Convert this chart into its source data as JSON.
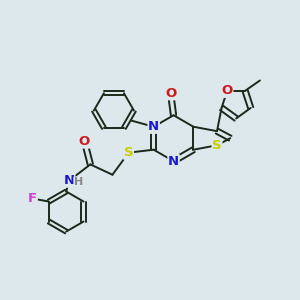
{
  "bg_color": "#dce8ec",
  "bond_color": "#1a2a1a",
  "atom_colors": {
    "N": "#1a1acc",
    "O": "#cc1a1a",
    "S": "#cccc00",
    "F": "#cc44cc",
    "C": "#1a2a1a",
    "H": "#888888"
  },
  "bond_lw": 1.4,
  "font_size": 9.5
}
